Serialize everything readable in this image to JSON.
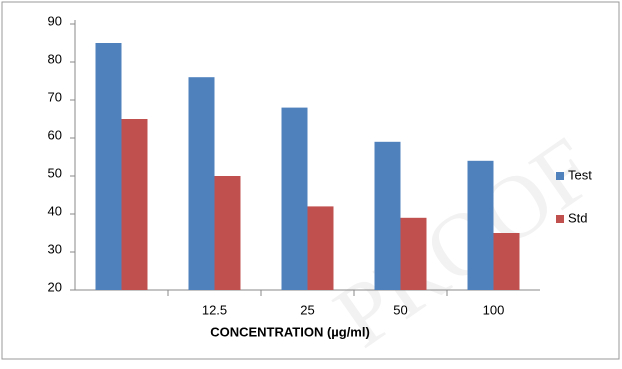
{
  "chart_data": {
    "type": "bar",
    "categories": [
      null,
      "12.5",
      "25",
      "50",
      "100"
    ],
    "series": [
      {
        "name": "Test",
        "color": "#4f81bd",
        "values": [
          85,
          76,
          68,
          59,
          54
        ]
      },
      {
        "name": "Std",
        "color": "#c0504d",
        "values": [
          65,
          50,
          42,
          39,
          35
        ]
      }
    ],
    "x_label": "CONCENTRATION (µg/ml)",
    "ylim": [
      20,
      90
    ],
    "yticks": [
      20,
      30,
      40,
      50,
      60,
      70,
      80,
      90
    ],
    "legend": "right",
    "watermark": "PROOF"
  }
}
